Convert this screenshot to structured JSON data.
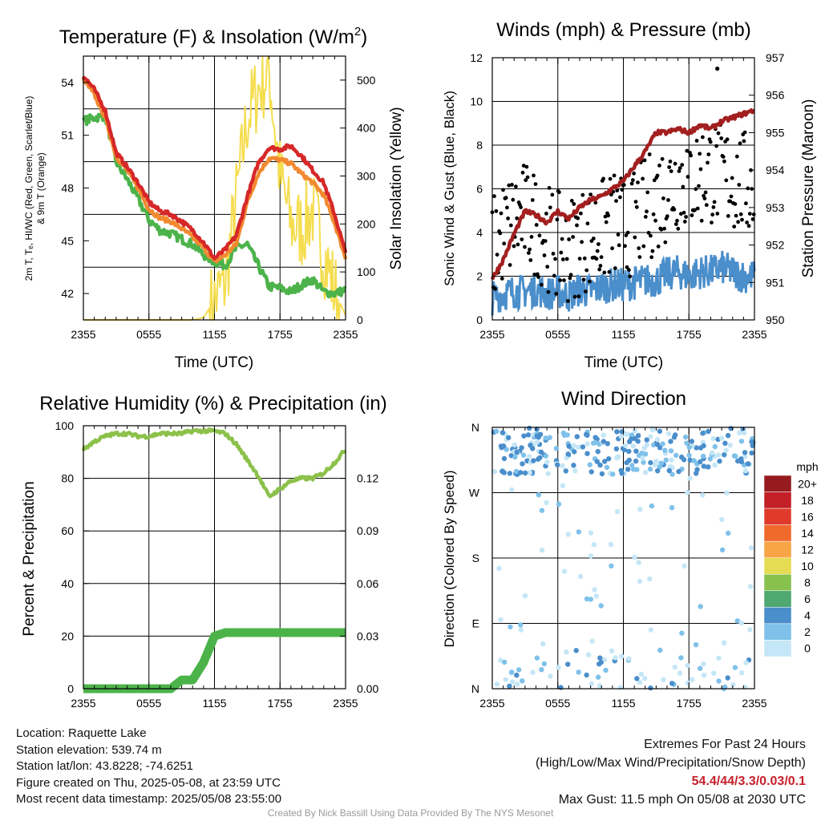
{
  "panels": {
    "temp": {
      "title": "Temperature (F) & Insolation (W/m²)",
      "ylabel_left_line1": "2m T, Tₑ, HI/WC (Red, Green, Scarlet/Blue)",
      "ylabel_left_line2": "& 9m T (Orange)",
      "ylabel_right": "Solar Insolation (Yellow)",
      "xlabel": "Time (UTC)"
    },
    "wind": {
      "title": "Winds (mph) & Pressure (mb)",
      "ylabel_left": "Sonic Wind & Gust (Blue, Black)",
      "ylabel_right": "Station Pressure (Maroon)",
      "xlabel": "Time (UTC)"
    },
    "rh": {
      "title": "Relative Humidity (%) & Precipitation (in)",
      "ylabel_left": "Percent & Precipitation"
    },
    "dir": {
      "title": "Wind Direction",
      "ylabel_left": "Direction (Colored By Speed)",
      "colorbar_label": "mph"
    }
  },
  "info": {
    "location": "Location: Raquette Lake",
    "elevation": "Station elevation: 539.74 m",
    "latlon": "Station lat/lon: 43.8228; -74.6251",
    "created": "Figure created on Thu, 2025-05-08, at 23:59 UTC",
    "recent": "Most recent data timestamp: 2025/05/08 23:55:00",
    "extremes_title": "Extremes For Past 24 Hours",
    "extremes_sub": "(High/Low/Max Wind/Precipitation/Snow Depth)",
    "extremes_values": "54.4/44/3.3/0.03/0.1",
    "max_gust": "Max Gust: 11.5 mph On 05/08 at 2030 UTC",
    "credit": "Created By Nick Bassill Using Data Provided By The NYS Mesonet"
  },
  "chart_data": [
    {
      "type": "line",
      "title": "Temperature (F) & Insolation (W/m²)",
      "xlabel": "Time (UTC)",
      "x_ticks": [
        "2355",
        "0555",
        "1155",
        "1755",
        "2355"
      ],
      "y_ticks_left": [
        42,
        45,
        48,
        51,
        54
      ],
      "y_ticks_right": [
        0,
        100,
        200,
        300,
        400,
        500
      ],
      "ylim_left": [
        40.5,
        55.5
      ],
      "ylim_right": [
        0,
        550
      ],
      "x_hours": [
        0,
        1,
        2,
        3,
        4,
        5,
        6,
        7,
        8,
        9,
        10,
        11,
        12,
        13,
        14,
        15,
        16,
        17,
        18,
        19,
        20,
        21,
        22,
        23,
        24
      ],
      "series": [
        {
          "color": "#d62828",
          "axis": "left",
          "values": [
            54.4,
            53.6,
            52.4,
            50.0,
            49.2,
            48.3,
            47.2,
            46.7,
            46.5,
            46.1,
            45.6,
            44.9,
            44.0,
            44.5,
            45.3,
            47.5,
            49.4,
            50.3,
            50.2,
            50.4,
            49.8,
            49.0,
            48.3,
            46.5,
            44.3
          ]
        },
        {
          "color": "#f28a30",
          "axis": "left",
          "values": [
            54.2,
            53.3,
            52.0,
            49.8,
            49.0,
            48.0,
            46.8,
            46.3,
            46.1,
            45.7,
            45.2,
            44.6,
            43.8,
            44.2,
            44.8,
            47.2,
            48.8,
            49.7,
            49.6,
            49.4,
            48.8,
            48.3,
            47.6,
            46.0,
            44.0
          ]
        },
        {
          "color": "#4cb34a",
          "axis": "left",
          "values": [
            51.8,
            52.0,
            52.1,
            49.5,
            48.5,
            47.4,
            46.2,
            45.6,
            45.4,
            45.1,
            44.8,
            44.2,
            43.8,
            43.6,
            44.6,
            44.8,
            43.6,
            42.4,
            42.3,
            42.1,
            42.5,
            42.8,
            42.1,
            42.0,
            42.2
          ]
        }
      ],
      "insolation": {
        "color": "#f5dd50",
        "axis": "right",
        "values": [
          0,
          0,
          0,
          0,
          0,
          0,
          0,
          0,
          0,
          0,
          0,
          5,
          40,
          80,
          250,
          420,
          480,
          520,
          300,
          200,
          190,
          230,
          140,
          60,
          10
        ]
      }
    },
    {
      "type": "line",
      "title": "Winds (mph) & Pressure (mb)",
      "xlabel": "Time (UTC)",
      "x_ticks": [
        "2355",
        "0555",
        "1155",
        "1755",
        "2355"
      ],
      "y_ticks_left": [
        0,
        2,
        4,
        6,
        8,
        10,
        12
      ],
      "y_ticks_right": [
        950,
        951,
        952,
        953,
        954,
        955,
        956,
        957
      ],
      "ylim_left": [
        0,
        12
      ],
      "ylim_right": [
        950,
        957
      ],
      "x_hours": [
        0,
        1,
        2,
        3,
        4,
        5,
        6,
        7,
        8,
        9,
        10,
        11,
        12,
        13,
        14,
        15,
        16,
        17,
        18,
        19,
        20,
        21,
        22,
        23,
        24
      ],
      "wind_mean": [
        1.0,
        1.2,
        1.3,
        1.3,
        1.4,
        1.2,
        1.3,
        1.1,
        1.4,
        1.3,
        1.5,
        1.6,
        1.6,
        1.7,
        1.8,
        1.8,
        2.1,
        2.2,
        2.0,
        2.2,
        2.2,
        2.4,
        2.2,
        2.0,
        2.0
      ],
      "pressure": [
        951.1,
        951.6,
        952.3,
        952.9,
        952.8,
        952.6,
        952.9,
        952.7,
        953.0,
        953.2,
        953.3,
        953.5,
        953.7,
        954.1,
        954.5,
        955.0,
        955.0,
        955.1,
        955.0,
        955.2,
        955.1,
        955.3,
        955.4,
        955.5,
        955.6
      ],
      "gust_envelope_mean": [
        3.2,
        4.0,
        4.5,
        4.8,
        4.4,
        3.8,
        3.4,
        3.2,
        3.6,
        3.8,
        4.0,
        4.4,
        4.2,
        4.6,
        5.0,
        5.5,
        6.0,
        6.5,
        6.4,
        6.6,
        6.8,
        6.6,
        6.4,
        6.2,
        6.0
      ],
      "max_gust": {
        "hour": 20.6,
        "value": 11.5
      },
      "colors": {
        "wind": "#4a8ecb",
        "gust": "#000000",
        "pressure": "#a31f1f"
      }
    },
    {
      "type": "line",
      "title": "Relative Humidity (%) & Precipitation (in)",
      "x_ticks": [
        "2355",
        "0555",
        "1155",
        "1755",
        "2355"
      ],
      "y_ticks_left": [
        0,
        20,
        40,
        60,
        80,
        100
      ],
      "y_ticks_right": [
        "0.00",
        "0.03",
        "0.06",
        "0.09",
        "0.12"
      ],
      "ylim_left": [
        0,
        100
      ],
      "ylim_right": [
        0,
        0.15
      ],
      "x_hours": [
        0,
        1,
        2,
        3,
        4,
        5,
        6,
        7,
        8,
        9,
        10,
        11,
        12,
        13,
        14,
        15,
        16,
        17,
        18,
        19,
        20,
        21,
        22,
        23,
        24
      ],
      "rh": [
        91,
        94,
        96,
        97,
        97,
        96,
        96,
        97,
        97,
        97,
        98,
        98,
        98,
        97,
        93,
        87,
        81,
        73,
        76,
        79,
        80,
        80,
        82,
        86,
        91
      ],
      "precip": [
        0,
        0,
        0,
        0,
        0,
        0,
        0,
        0,
        0,
        0.005,
        0.005,
        0.015,
        0.03,
        0.032,
        0.032,
        0.032,
        0.032,
        0.032,
        0.032,
        0.032,
        0.032,
        0.032,
        0.032,
        0.032,
        0.032
      ],
      "colors": {
        "rh": "#8cc14a",
        "precip": "#4cb34a"
      }
    },
    {
      "type": "scatter",
      "title": "Wind Direction",
      "ylabel": "Direction (Colored By Speed)",
      "x_ticks": [
        "2355",
        "0555",
        "1155",
        "1755",
        "2355"
      ],
      "y_ticks": [
        "N",
        "E",
        "S",
        "W",
        "N"
      ],
      "ylim": [
        0,
        360
      ],
      "colorbar": {
        "label": "mph",
        "ticks": [
          "0",
          "2",
          "4",
          "6",
          "8",
          "10",
          "12",
          "14",
          "16",
          "18",
          "20+"
        ],
        "colors": [
          "#c5e6f6",
          "#7fc1ea",
          "#4a8ecb",
          "#4ea870",
          "#86c24d",
          "#e6dc54",
          "#f7a546",
          "#f0692d",
          "#df3a2b",
          "#c21f26",
          "#951b1e"
        ]
      },
      "clusters": [
        {
          "hours": [
            0,
            24
          ],
          "dir_range": [
            290,
            360
          ],
          "density": "high"
        },
        {
          "hours": [
            0,
            24
          ],
          "dir_range": [
            0,
            60
          ],
          "density": "medium"
        },
        {
          "hours": [
            0,
            24
          ],
          "dir_range": [
            60,
            290
          ],
          "density": "low"
        }
      ]
    }
  ]
}
